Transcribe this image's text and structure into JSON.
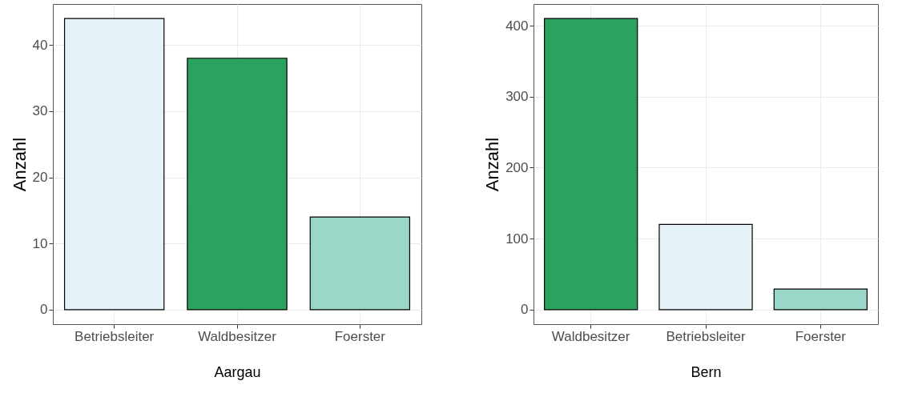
{
  "chart_data": [
    {
      "type": "bar",
      "xlabel": "Aargau",
      "ylabel": "Anzahl",
      "categories": [
        "Betriebsleiter",
        "Waldbesitzer",
        "Foerster"
      ],
      "values": [
        44,
        38,
        14
      ],
      "colors": [
        "#e5f3f9",
        "#2ca25f",
        "#99d8c9"
      ],
      "ylim": [
        -2.2,
        46.2
      ],
      "yticks": [
        0,
        10,
        20,
        30,
        40
      ],
      "grid": true
    },
    {
      "type": "bar",
      "xlabel": "Bern",
      "ylabel": "Anzahl",
      "categories": [
        "Waldbesitzer",
        "Betriebsleiter",
        "Foerster"
      ],
      "values": [
        410,
        120,
        29
      ],
      "colors": [
        "#2ca25f",
        "#e5f3f9",
        "#99d8c9"
      ],
      "ylim": [
        -20.5,
        430.5
      ],
      "yticks": [
        0,
        100,
        200,
        300,
        400
      ],
      "grid": true
    }
  ]
}
